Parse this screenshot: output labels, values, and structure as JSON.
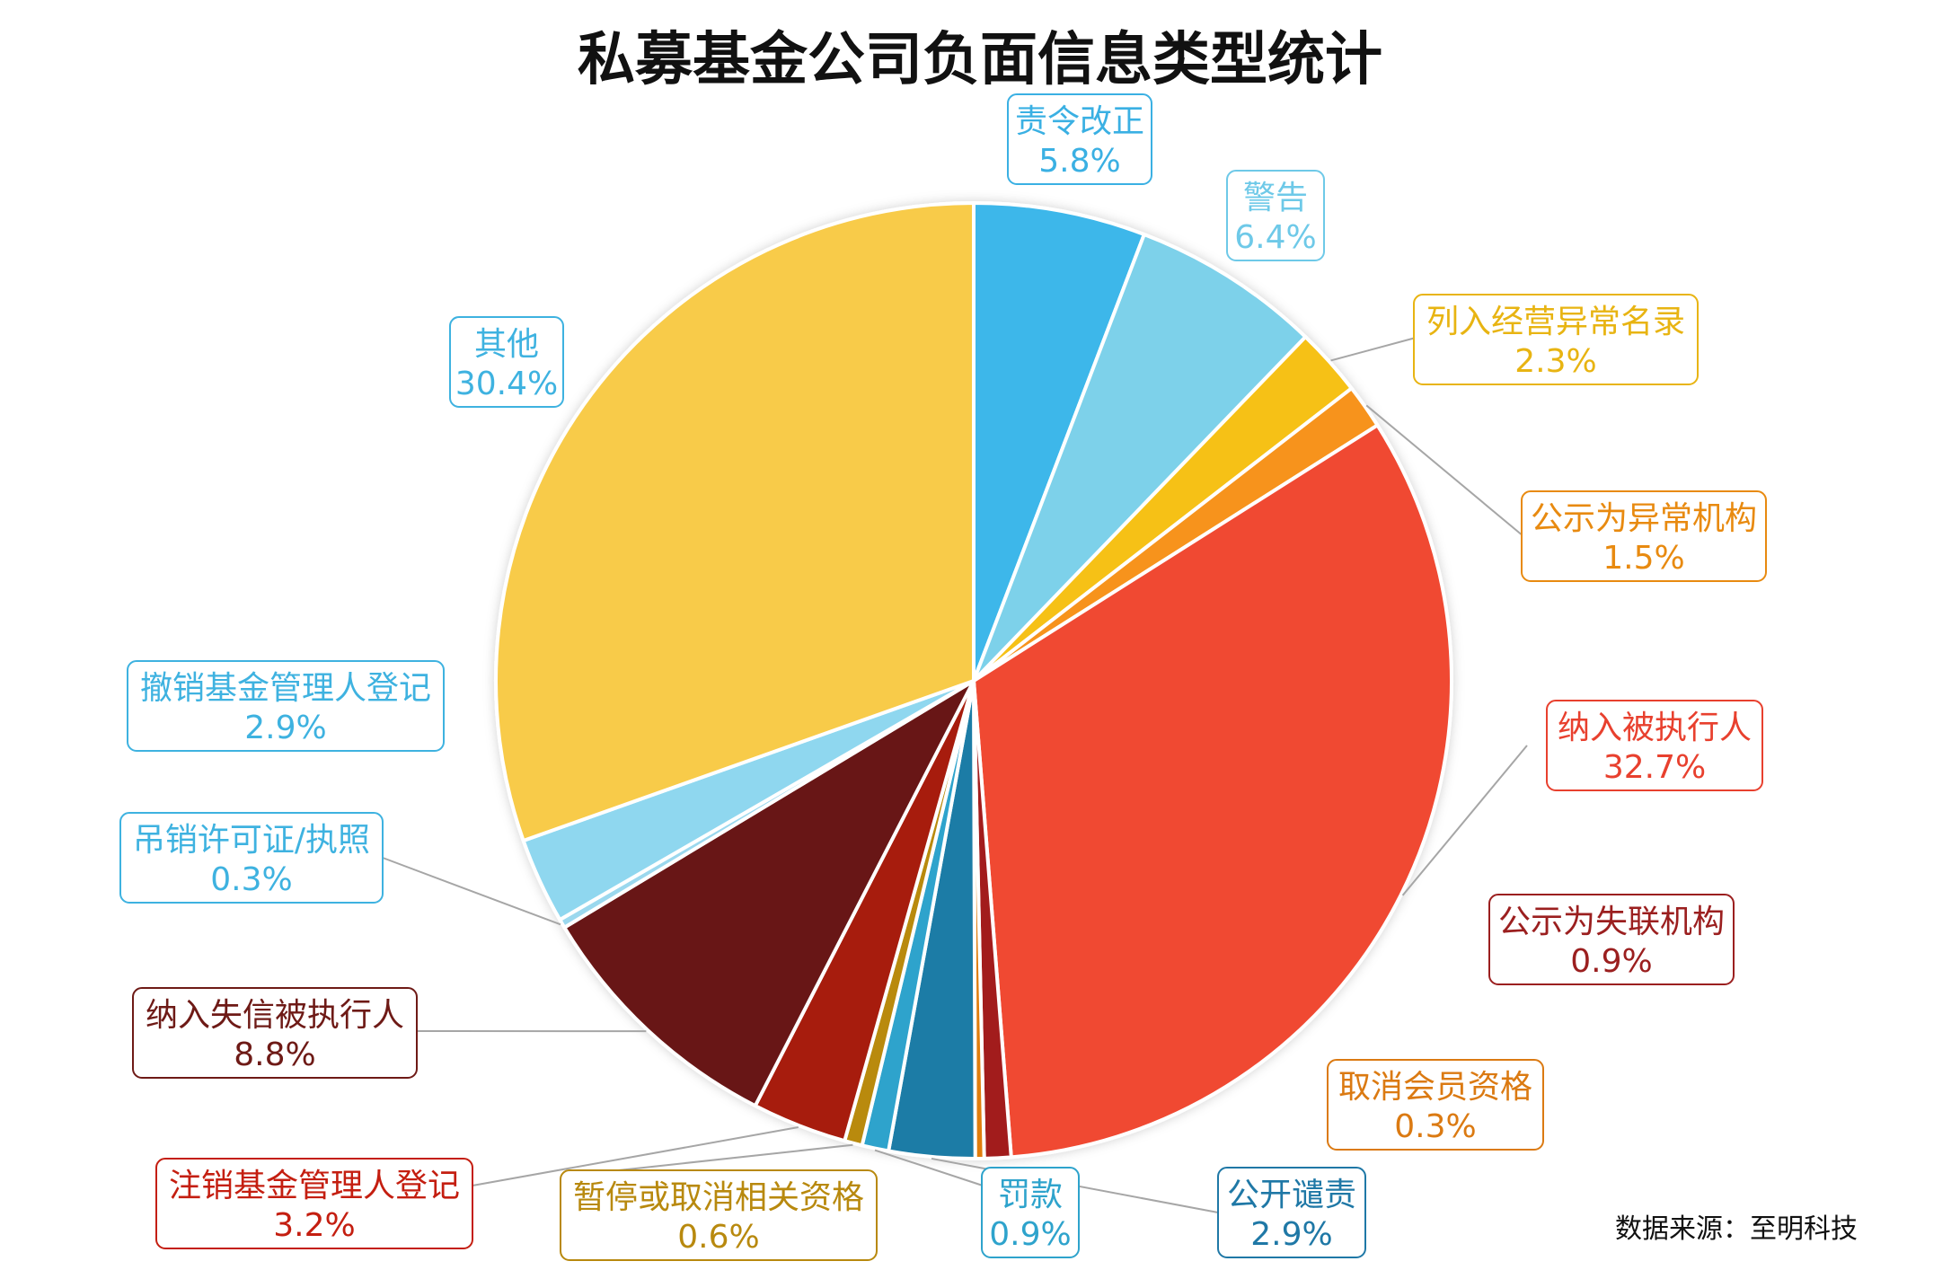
{
  "chart_data": {
    "type": "pie",
    "title": "私募基金公司负面信息类型统计",
    "source": "数据来源：至明科技",
    "slices": [
      {
        "name": "责令改正",
        "value": 5.8,
        "label": "5.8%",
        "color": "#3db7ea",
        "label_color": "#3ab0e3"
      },
      {
        "name": "警告",
        "value": 6.4,
        "label": "6.4%",
        "color": "#7dd1ea",
        "label_color": "#6ec9e8"
      },
      {
        "name": "列入经营异常名录",
        "value": 2.3,
        "label": "2.3%",
        "color": "#f6c119",
        "label_color": "#e8b412"
      },
      {
        "name": "公示为异常机构",
        "value": 1.5,
        "label": "1.5%",
        "color": "#f7931e",
        "label_color": "#e88a10"
      },
      {
        "name": "纳入被执行人",
        "value": 32.7,
        "label": "32.7%",
        "color": "#f04a33",
        "label_color": "#e8402e"
      },
      {
        "name": "公示为失联机构",
        "value": 0.9,
        "label": "0.9%",
        "color": "#a21c1c",
        "label_color": "#9b1f1f"
      },
      {
        "name": "取消会员资格",
        "value": 0.3,
        "label": "0.3%",
        "color": "#e07d10",
        "label_color": "#db7a12"
      },
      {
        "name": "公开谴责",
        "value": 2.9,
        "label": "2.9%",
        "color": "#1b7ba6",
        "label_color": "#1f78a6"
      },
      {
        "name": "罚款",
        "value": 0.9,
        "label": "0.9%",
        "color": "#2ea3cc",
        "label_color": "#2ea3cc"
      },
      {
        "name": "暂停或取消相关资格",
        "value": 0.6,
        "label": "0.6%",
        "color": "#b98a0c",
        "label_color": "#b8890e"
      },
      {
        "name": "注销基金管理人登记",
        "value": 3.2,
        "label": "3.2%",
        "color": "#a71d0c",
        "label_color": "#c41e10"
      },
      {
        "name": "纳入失信被执行人",
        "value": 8.8,
        "label": "8.8%",
        "color": "#671513",
        "label_color": "#6e1a16"
      },
      {
        "name": "吊销许可证/执照",
        "value": 0.3,
        "label": "0.3%",
        "color": "#9bd8ee",
        "label_color": "#3eb2e0"
      },
      {
        "name": "撤销基金管理人登记",
        "value": 2.9,
        "label": "2.9%",
        "color": "#8fd7ef",
        "label_color": "#3eb2e0"
      },
      {
        "name": "其他",
        "value": 30.4,
        "label": "30.4%",
        "color": "#f8cb4a",
        "label_color": "#3eb2e0"
      }
    ]
  }
}
